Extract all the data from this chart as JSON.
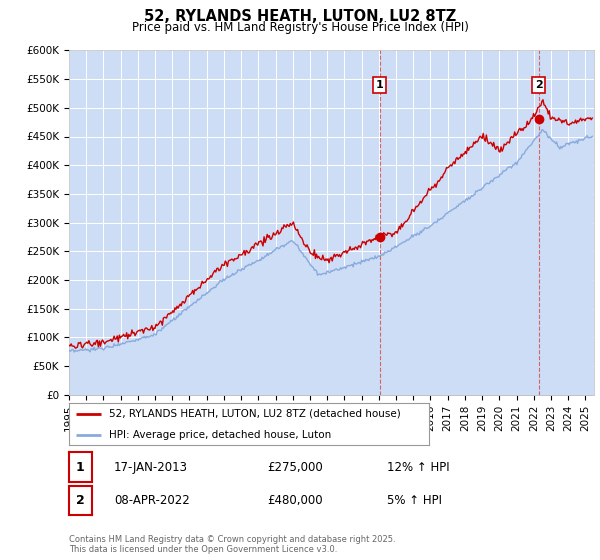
{
  "title": "52, RYLANDS HEATH, LUTON, LU2 8TZ",
  "subtitle": "Price paid vs. HM Land Registry's House Price Index (HPI)",
  "ylim": [
    0,
    600000
  ],
  "xlim_start": 1995.0,
  "xlim_end": 2025.5,
  "legend_line1": "52, RYLANDS HEATH, LUTON, LU2 8TZ (detached house)",
  "legend_line2": "HPI: Average price, detached house, Luton",
  "marker1_date": "17-JAN-2013",
  "marker1_price": "£275,000",
  "marker1_hpi": "12% ↑ HPI",
  "marker1_label": "1",
  "marker1_x": 2013.05,
  "marker1_y": 275000,
  "marker2_date": "08-APR-2022",
  "marker2_price": "£480,000",
  "marker2_hpi": "5% ↑ HPI",
  "marker2_label": "2",
  "marker2_x": 2022.28,
  "marker2_y": 480000,
  "footer": "Contains HM Land Registry data © Crown copyright and database right 2025.\nThis data is licensed under the Open Government Licence v3.0.",
  "line_color_red": "#cc0000",
  "line_color_blue": "#88aadd",
  "fill_color_blue": "#ccddf5",
  "marker_vline_color": "#dd4444",
  "background_fig": "#ffffff",
  "grid_color": "#ffffff"
}
